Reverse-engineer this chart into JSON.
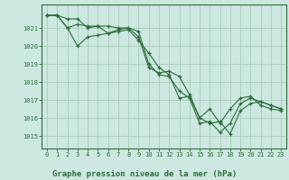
{
  "background_color": "#cce8e0",
  "grid_color": "#aaccbb",
  "line_color": "#2d6b3c",
  "title": "Graphe pression niveau de la mer (hPa)",
  "title_color": "#2d6b3c",
  "xlim": [
    -0.5,
    23.5
  ],
  "ylim": [
    1014.3,
    1022.3
  ],
  "yticks": [
    1015,
    1016,
    1017,
    1018,
    1019,
    1020,
    1021
  ],
  "xticks": [
    0,
    1,
    2,
    3,
    4,
    5,
    6,
    7,
    8,
    9,
    10,
    11,
    12,
    13,
    14,
    15,
    16,
    17,
    18,
    19,
    20,
    21,
    22,
    23
  ],
  "series": [
    [
      1021.7,
      1021.7,
      1021.0,
      1021.2,
      1021.1,
      1021.1,
      1021.1,
      1021.0,
      1021.0,
      1020.8,
      1019.0,
      1018.4,
      1018.3,
      1017.5,
      1017.1,
      1015.7,
      1015.8,
      1015.2,
      1015.7,
      1016.8,
      1017.1,
      1016.9,
      1016.7,
      1016.5
    ],
    [
      1021.7,
      1021.7,
      1021.0,
      1020.0,
      1020.5,
      1020.6,
      1020.7,
      1020.8,
      1020.9,
      1020.3,
      1019.6,
      1018.8,
      1018.4,
      1017.1,
      1017.2,
      1016.0,
      1015.7,
      1015.8,
      1015.1,
      1016.4,
      1016.8,
      1016.9,
      1016.7,
      1016.5
    ],
    [
      1021.7,
      1021.7,
      1021.5,
      1021.5,
      1021.0,
      1021.1,
      1020.7,
      1020.9,
      1021.0,
      1020.5,
      1018.8,
      1018.5,
      1018.6,
      1018.3,
      1017.3,
      1016.0,
      1016.5,
      1015.7,
      1016.5,
      1017.1,
      1017.2,
      1016.7,
      1016.5,
      1016.4
    ]
  ]
}
